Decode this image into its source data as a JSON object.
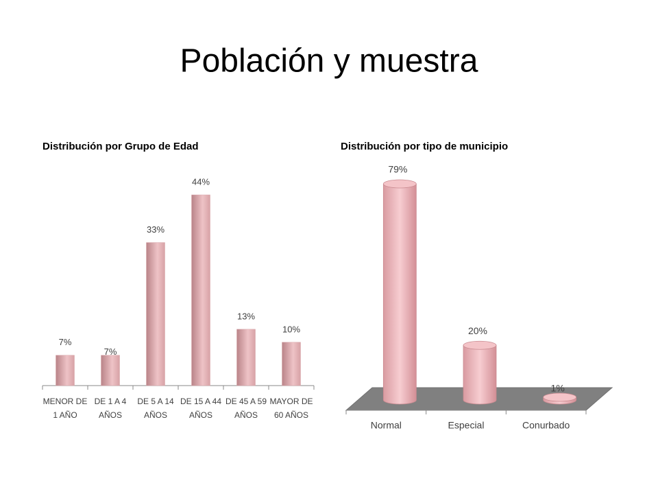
{
  "title": "Población y muestra",
  "chart_data": [
    {
      "type": "bar",
      "title": "Distribución  por Grupo de Edad",
      "categories": [
        "MENOR DE 1 AÑO",
        "DE 1 A 4 AÑOS",
        "DE 5 A 14 AÑOS",
        "DE 15 A 44 AÑOS",
        "DE 45 A 59 AÑOS",
        "MAYOR DE 60 AÑOS"
      ],
      "values": [
        7,
        7,
        33,
        44,
        13,
        10
      ],
      "value_labels": [
        "7%",
        "7%",
        "33%",
        "44%",
        "13%",
        "10%"
      ],
      "color": "#d9a5a9"
    },
    {
      "type": "cylinder",
      "title": "Distribución  por tipo de municipio",
      "categories": [
        "Normal",
        "Especial",
        "Conurbado"
      ],
      "values": [
        79,
        20,
        1
      ],
      "value_labels": [
        "79%",
        "20%",
        "1%"
      ],
      "color": "#f2b8bd"
    }
  ]
}
